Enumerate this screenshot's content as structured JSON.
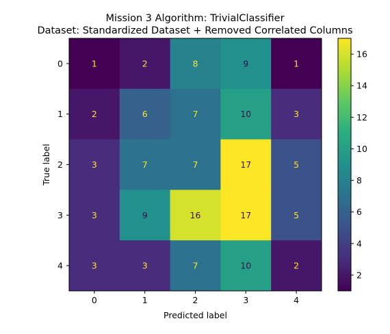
{
  "chart_data": {
    "type": "heatmap",
    "title_line1": "Mission 3 Algorithm: TrivialClassifier",
    "title_line2": "Dataset: Standardized Dataset + Removed Correlated Columns",
    "xlabel": "Predicted label",
    "ylabel": "True label",
    "x_categories": [
      "0",
      "1",
      "2",
      "3",
      "4"
    ],
    "y_categories": [
      "0",
      "1",
      "2",
      "3",
      "4"
    ],
    "values": [
      [
        1,
        2,
        8,
        9,
        1
      ],
      [
        2,
        6,
        7,
        10,
        3
      ],
      [
        3,
        7,
        7,
        17,
        5
      ],
      [
        3,
        9,
        16,
        17,
        5
      ],
      [
        3,
        3,
        7,
        10,
        2
      ]
    ],
    "colormap": "viridis",
    "vmin": 1,
    "vmax": 17,
    "colorbar_ticks": [
      2,
      4,
      6,
      8,
      10,
      12,
      14,
      16
    ],
    "text_color_light": "#ffe41a",
    "text_color_dark": "#440154"
  }
}
